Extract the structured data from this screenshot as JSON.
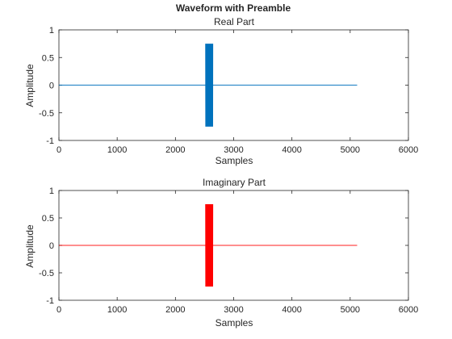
{
  "suptitle": "Waveform with Preamble",
  "chart_data": [
    {
      "type": "line",
      "title": "Real Part",
      "xlabel": "Samples",
      "ylabel": "Amplitude",
      "xlim": [
        0,
        6000
      ],
      "ylim": [
        -1,
        1
      ],
      "xticks": [
        "0",
        "1000",
        "2000",
        "3000",
        "4000",
        "5000",
        "6000"
      ],
      "yticks": [
        "-1",
        "-0.5",
        "0",
        "0.5",
        "1"
      ],
      "grid": false,
      "color": "#0072BD",
      "series": [
        {
          "baseline": {
            "x": [
              1,
              5120
            ],
            "y": [
              0,
              0
            ]
          },
          "burst": {
            "x_start": 2520,
            "x_end": 2640,
            "amplitude_range": [
              -0.75,
              0.75
            ]
          }
        }
      ]
    },
    {
      "type": "line",
      "title": "Imaginary Part",
      "xlabel": "Samples",
      "ylabel": "Amplitude",
      "xlim": [
        0,
        6000
      ],
      "ylim": [
        -1,
        1
      ],
      "xticks": [
        "0",
        "1000",
        "2000",
        "3000",
        "4000",
        "5000",
        "6000"
      ],
      "yticks": [
        "-1",
        "-0.5",
        "0",
        "0.5",
        "1"
      ],
      "grid": false,
      "color": "#FF0000",
      "series": [
        {
          "baseline": {
            "x": [
              1,
              5120
            ],
            "y": [
              0,
              0
            ]
          },
          "burst": {
            "x_start": 2520,
            "x_end": 2640,
            "amplitude_range": [
              -0.75,
              0.75
            ]
          }
        }
      ]
    }
  ]
}
